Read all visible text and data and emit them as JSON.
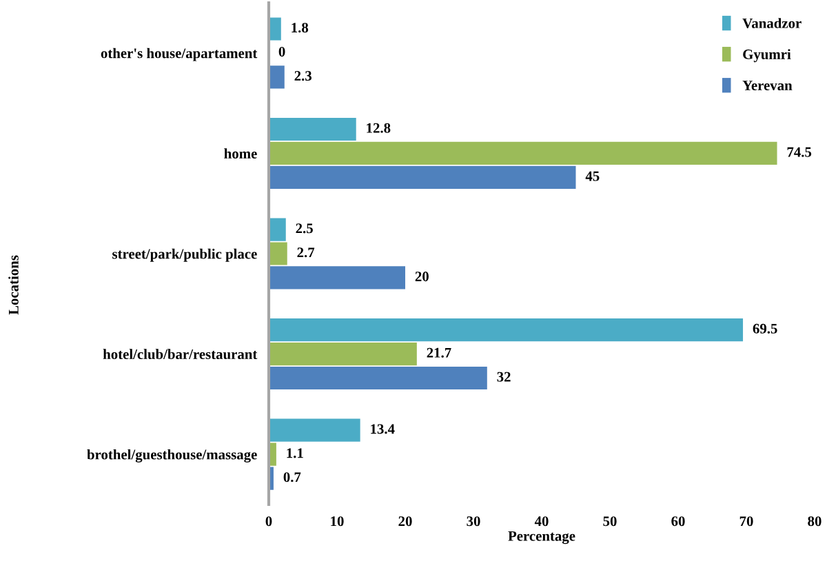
{
  "chart_data": {
    "type": "bar",
    "orientation": "horizontal",
    "xlabel": "Percentage",
    "ylabel": "Locations",
    "categories": [
      "other's house/apartament",
      "home",
      "street/park/public place",
      "hotel/club/bar/restaurant",
      "brothel/guesthouse/massage"
    ],
    "series": [
      {
        "name": "Vanadzor",
        "color": "#4bacc6",
        "values": [
          1.8,
          12.8,
          2.5,
          69.5,
          13.4
        ]
      },
      {
        "name": "Gyumri",
        "color": "#9bbb59",
        "values": [
          0,
          74.5,
          2.7,
          21.7,
          1.1
        ]
      },
      {
        "name": "Yerevan",
        "color": "#4f81bd",
        "values": [
          2.3,
          45,
          20,
          32,
          0.7
        ]
      }
    ],
    "xlim": [
      0,
      80
    ],
    "xticks": [
      0,
      10,
      20,
      30,
      40,
      50,
      60,
      70,
      80
    ],
    "data_labels": true,
    "legend": "top right",
    "grid": false
  }
}
